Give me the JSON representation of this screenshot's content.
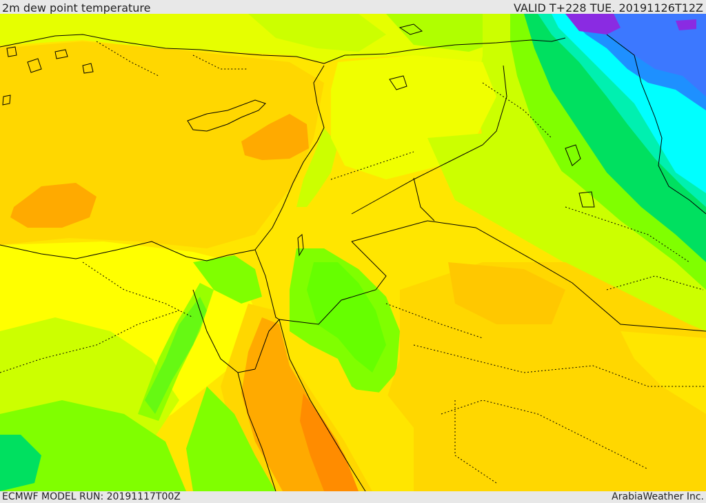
{
  "header": {
    "title": "2m dew point temperature",
    "valid": "VALID T+228 TUE. 20191126T12Z"
  },
  "footer": {
    "model_run": "ECMWF MODEL RUN: 20191117T00Z",
    "credit": "ArabiaWeather Inc."
  },
  "map": {
    "variable": "2m dew point temperature",
    "colors": {
      "purple": "#8a2be2",
      "blue": "#1e90ff",
      "cyan": "#00ffff",
      "green_dark": "#00e060",
      "green": "#80ff00",
      "yellow_green": "#ccff00",
      "yellow": "#ffff00",
      "gold": "#ffd700",
      "orange": "#ffaa00",
      "dark_orange": "#ff7f00",
      "border": "#000000"
    }
  }
}
